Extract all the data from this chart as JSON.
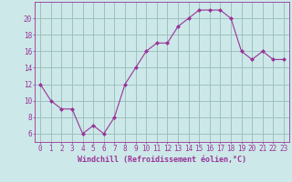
{
  "x": [
    0,
    1,
    2,
    3,
    4,
    5,
    6,
    7,
    8,
    9,
    10,
    11,
    12,
    13,
    14,
    15,
    16,
    17,
    18,
    19,
    20,
    21,
    22,
    23
  ],
  "y": [
    12,
    10,
    9,
    9,
    6,
    7,
    6,
    8,
    12,
    14,
    16,
    17,
    17,
    19,
    20,
    21,
    21,
    21,
    20,
    16,
    15,
    16,
    15,
    15
  ],
  "line_color": "#993399",
  "marker": "D",
  "marker_size": 2,
  "bg_color": "#cce8e8",
  "grid_color": "#99bbbb",
  "xlabel": "Windchill (Refroidissement éolien,°C)",
  "xlabel_fontsize": 6,
  "tick_fontsize": 5.5,
  "ylim": [
    5,
    22
  ],
  "yticks": [
    6,
    8,
    10,
    12,
    14,
    16,
    18,
    20
  ],
  "xticks": [
    0,
    1,
    2,
    3,
    4,
    5,
    6,
    7,
    8,
    9,
    10,
    11,
    12,
    13,
    14,
    15,
    16,
    17,
    18,
    19,
    20,
    21,
    22,
    23
  ]
}
